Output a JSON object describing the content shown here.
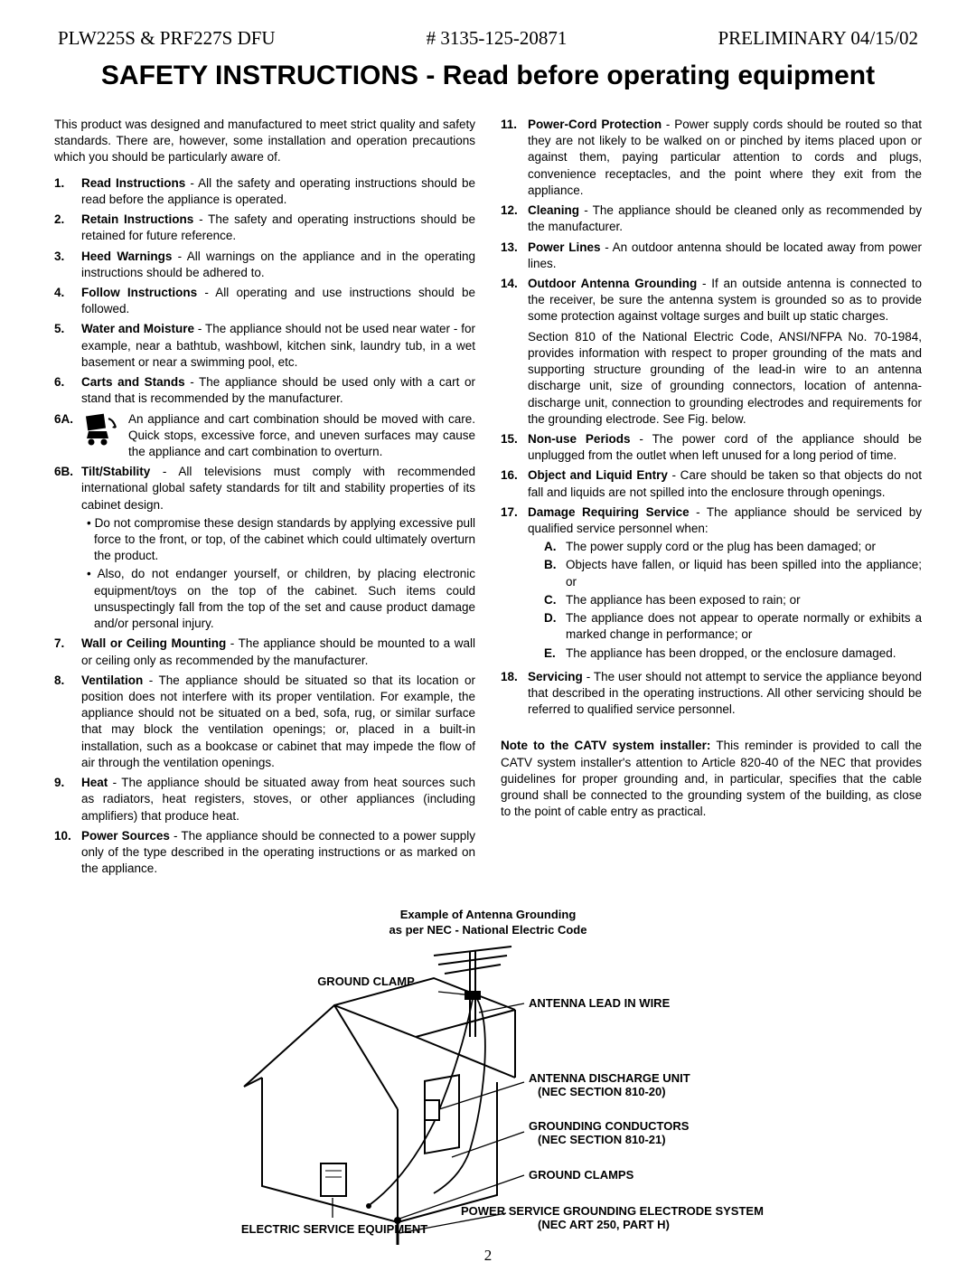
{
  "header": {
    "left": "PLW225S & PRF227S DFU",
    "center": "# 3135-125-20871",
    "right": "PRELIMINARY  04/15/02"
  },
  "title": "SAFETY INSTRUCTIONS - Read before operating equipment",
  "intro": "This product was designed and manufactured to meet strict quality and safety standards. There are, however, some installation and operation precautions which you should be particularly aware of.",
  "left_items": [
    {
      "n": "1.",
      "t": "Read Instructions",
      "b": " - All the safety and operating instructions should be read before the appliance is operated."
    },
    {
      "n": "2.",
      "t": "Retain Instructions",
      "b": " - The safety and operating instructions should be retained for future reference."
    },
    {
      "n": "3.",
      "t": "Heed Warnings",
      "b": " - All warnings on the appliance and in the operating instructions should be adhered to."
    },
    {
      "n": "4.",
      "t": "Follow Instructions",
      "b": " - All operating and use instructions should be followed."
    },
    {
      "n": "5.",
      "t": "Water and Moisture",
      "b": " - The appliance should not be used near water - for example, near a bathtub, washbowl, kitchen sink, laundry tub, in a wet basement or near a swimming pool, etc."
    },
    {
      "n": "6.",
      "t": "Carts and Stands",
      "b": " - The appliance should be used only with a cart or stand that is recommended by the manufacturer."
    }
  ],
  "item6a_n": "6A.",
  "item6a": "An appliance and cart combination should be moved with care. Quick stops, excessive force, and uneven surfaces may cause the appliance and cart combination to overturn.",
  "item6b_n": "6B.",
  "item6b": {
    "t": "Tilt/Stability",
    "b": " - All televisions must comply with recommended international global safety standards for tilt and stability properties of its cabinet design.",
    "bullets": [
      "Do not compromise these design standards by applying excessive pull force to the front, or top, of the cabinet which could ultimately overturn the product.",
      "Also, do not endanger yourself, or children, by placing electronic equipment/toys on the top of the cabinet. Such items could unsuspectingly fall from the top of the set and cause product damage and/or personal injury."
    ]
  },
  "left_items2": [
    {
      "n": "7.",
      "t": "Wall or Ceiling Mounting",
      "b": " - The appliance should be mounted to a wall or ceiling only as recommended by the manufacturer."
    },
    {
      "n": "8.",
      "t": "Ventilation",
      "b": " - The appliance should be situated so that its location or position does not interfere with its proper ventilation. For example, the appliance should not be situated on a bed, sofa, rug, or similar surface that may block the ventilation openings; or, placed in a built-in installation, such as a bookcase or cabinet that may impede the flow of air through the ventilation openings."
    },
    {
      "n": "9.",
      "t": "Heat",
      "b": " - The appliance should be situated away from heat sources such as radiators, heat registers, stoves, or other appliances (including amplifiers) that produce heat."
    },
    {
      "n": "10.",
      "t": "Power Sources",
      "b": " - The appliance should be connected to a power supply only of the type described in the operating instructions or as marked on the appliance."
    }
  ],
  "right_items": [
    {
      "n": "11.",
      "t": "Power-Cord Protection",
      "b": " - Power supply cords should be routed so that they are not likely to be walked on or pinched by items placed upon or against them, paying particular attention to cords and plugs, convenience receptacles, and the point where they exit from the appliance."
    },
    {
      "n": "12.",
      "t": "Cleaning",
      "b": " - The appliance should be cleaned only as recommended by the manufacturer."
    },
    {
      "n": "13.",
      "t": "Power Lines",
      "b": " - An outdoor antenna should be located away from power lines."
    },
    {
      "n": "14.",
      "t": "Outdoor Antenna Grounding",
      "b": " - If an outside antenna is connected to the receiver, be sure the antenna system is grounded so as to provide some protection against voltage surges and built up static charges.",
      "extra": "Section 810 of the National Electric Code, ANSI/NFPA No. 70-1984, provides information with respect to proper grounding of the mats and supporting structure grounding of the lead-in wire to an antenna discharge unit, size of grounding connectors, location of antenna-discharge unit, connection to grounding electrodes and requirements for the grounding electrode. See Fig. below."
    },
    {
      "n": "15.",
      "t": "Non-use Periods",
      "b": " - The power cord of the appliance should be unplugged from the outlet when left unused for a long period of time."
    },
    {
      "n": "16.",
      "t": "Object and Liquid Entry",
      "b": " - Care should be taken so that objects do not fall and liquids are not spilled into the enclosure through openings."
    },
    {
      "n": "17.",
      "t": "Damage Requiring Service",
      "b": " - The appliance should be serviced by qualified service personnel when:",
      "alpha": [
        {
          "a": "A.",
          "txt": "The power supply cord or the plug has been damaged; or"
        },
        {
          "a": "B.",
          "txt": "Objects have fallen, or liquid has been spilled into the appliance; or"
        },
        {
          "a": "C.",
          "txt": "The appliance has been exposed to rain; or"
        },
        {
          "a": "D.",
          "txt": "The appliance does not appear to operate normally or exhibits a marked change in performance; or"
        },
        {
          "a": "E.",
          "txt": "The appliance has been dropped, or the enclosure damaged."
        }
      ]
    },
    {
      "n": "18.",
      "t": "Servicing",
      "b": " - The user should not attempt to service the appliance beyond that described in the operating instructions. All other servicing should be referred to qualified service personnel."
    }
  ],
  "catv_note_title": "Note to the CATV system installer:",
  "catv_note": " This reminder is provided to call the CATV system installer's attention to Article 820-40 of the NEC  that provides guidelines for proper grounding and, in particular, specifies that the cable ground shall be connected to the grounding system of the building, as close to the point of cable entry as practical.",
  "diagram": {
    "title1": "Example of Antenna Grounding",
    "title2": "as per NEC - National Electric Code",
    "labels": {
      "ground_clamp": "GROUND CLAMP",
      "antenna_lead": "ANTENNA LEAD IN WIRE",
      "discharge_unit": "ANTENNA DISCHARGE UNIT",
      "discharge_sec": "(NEC SECTION 810-20)",
      "conductors": "GROUNDING CONDUCTORS",
      "conductors_sec": "(NEC SECTION 810-21)",
      "ground_clamps2": "GROUND CLAMPS",
      "power_service": "POWER SERVICE GROUNDING ELECTRODE SYSTEM",
      "power_service_sec": "(NEC ART 250, PART H)",
      "electric_service": "ELECTRIC SERVICE EQUIPMENT"
    }
  },
  "page_number": "2"
}
